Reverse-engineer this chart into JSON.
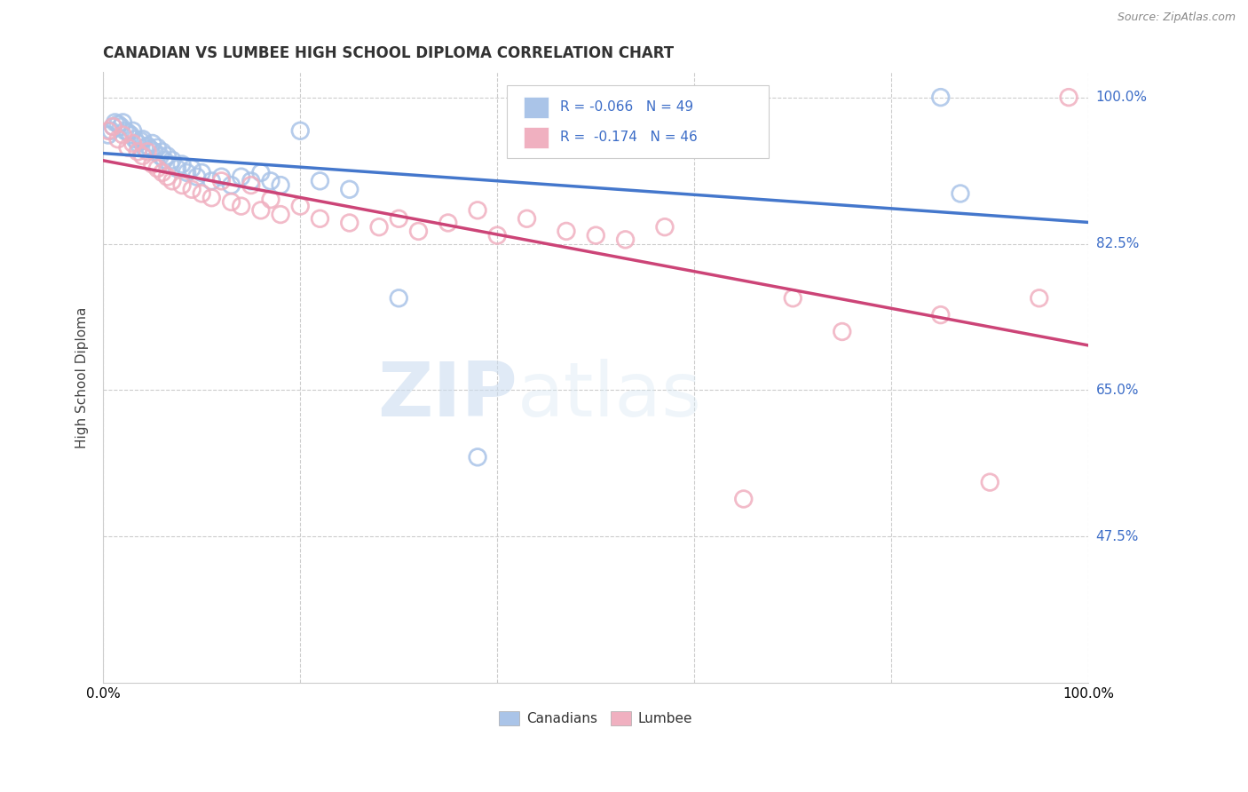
{
  "title": "CANADIAN VS LUMBEE HIGH SCHOOL DIPLOMA CORRELATION CHART",
  "source": "Source: ZipAtlas.com",
  "ylabel": "High School Diploma",
  "xlim": [
    0,
    1
  ],
  "ylim": [
    0.3,
    1.03
  ],
  "grid_color": "#cccccc",
  "blue_color": "#aac4e8",
  "pink_color": "#f0b0c0",
  "line_blue": "#4477cc",
  "line_pink": "#cc4477",
  "legend_R_blue": "-0.066",
  "legend_N_blue": "49",
  "legend_R_pink": "-0.174",
  "legend_N_pink": "46",
  "canadians_x": [
    0.005,
    0.008,
    0.01,
    0.012,
    0.015,
    0.018,
    0.02,
    0.022,
    0.025,
    0.028,
    0.03,
    0.032,
    0.035,
    0.038,
    0.04,
    0.042,
    0.045,
    0.048,
    0.05,
    0.052,
    0.055,
    0.058,
    0.06,
    0.062,
    0.065,
    0.068,
    0.07,
    0.075,
    0.08,
    0.085,
    0.09,
    0.095,
    0.1,
    0.11,
    0.12,
    0.13,
    0.14,
    0.15,
    0.16,
    0.17,
    0.18,
    0.2,
    0.22,
    0.25,
    0.3,
    0.38,
    0.65,
    0.85,
    0.87
  ],
  "canadians_y": [
    0.955,
    0.96,
    0.965,
    0.97,
    0.968,
    0.965,
    0.97,
    0.96,
    0.958,
    0.955,
    0.96,
    0.95,
    0.945,
    0.948,
    0.95,
    0.94,
    0.942,
    0.938,
    0.945,
    0.935,
    0.94,
    0.93,
    0.935,
    0.925,
    0.93,
    0.92,
    0.925,
    0.915,
    0.92,
    0.91,
    0.915,
    0.905,
    0.91,
    0.9,
    0.905,
    0.895,
    0.905,
    0.9,
    0.91,
    0.9,
    0.895,
    0.96,
    0.9,
    0.89,
    0.76,
    0.57,
    0.96,
    1.0,
    0.885
  ],
  "lumbee_x": [
    0.005,
    0.01,
    0.015,
    0.02,
    0.025,
    0.03,
    0.035,
    0.04,
    0.045,
    0.05,
    0.055,
    0.06,
    0.065,
    0.07,
    0.08,
    0.09,
    0.1,
    0.11,
    0.12,
    0.13,
    0.14,
    0.15,
    0.16,
    0.17,
    0.18,
    0.2,
    0.22,
    0.25,
    0.28,
    0.3,
    0.32,
    0.35,
    0.38,
    0.4,
    0.43,
    0.47,
    0.5,
    0.53,
    0.57,
    0.65,
    0.7,
    0.75,
    0.85,
    0.9,
    0.95,
    0.98
  ],
  "lumbee_y": [
    0.96,
    0.965,
    0.95,
    0.955,
    0.94,
    0.945,
    0.935,
    0.93,
    0.935,
    0.92,
    0.915,
    0.91,
    0.905,
    0.9,
    0.895,
    0.89,
    0.885,
    0.88,
    0.9,
    0.875,
    0.87,
    0.895,
    0.865,
    0.878,
    0.86,
    0.87,
    0.855,
    0.85,
    0.845,
    0.855,
    0.84,
    0.85,
    0.865,
    0.835,
    0.855,
    0.84,
    0.835,
    0.83,
    0.845,
    0.52,
    0.76,
    0.72,
    0.74,
    0.54,
    0.76,
    1.0
  ],
  "watermark_zip": "ZIP",
  "watermark_atlas": "atlas",
  "background_color": "#ffffff",
  "right_label_color": "#3b6cc7",
  "title_color": "#333333",
  "ytick_positions": [
    0.475,
    0.65,
    0.825,
    1.0
  ],
  "ytick_labels": [
    "47.5%",
    "65.0%",
    "82.5%",
    "100.0%"
  ],
  "xtick_positions": [
    0.0,
    0.2,
    0.4,
    0.6,
    0.8,
    1.0
  ],
  "xtick_labels": [
    "0.0%",
    "",
    "",
    "",
    "",
    "100.0%"
  ]
}
